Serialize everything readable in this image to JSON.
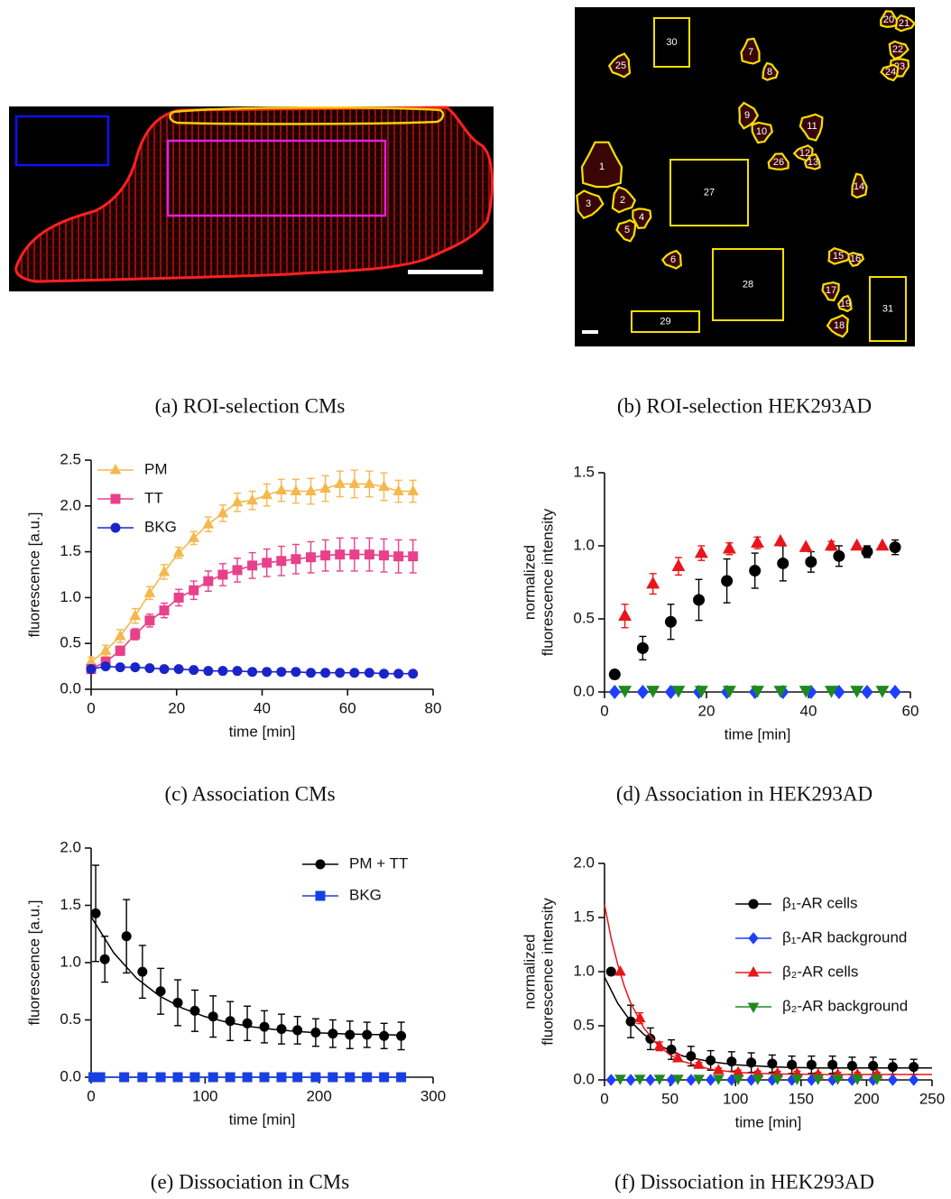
{
  "images": [
    {
      "caption": "(a) ROI-selection CMs"
    },
    {
      "caption": "(b) ROI-selection HEK293AD",
      "rois": [
        "1",
        "2",
        "3",
        "4",
        "5",
        "6",
        "7",
        "8",
        "9",
        "10",
        "11",
        "12",
        "13",
        "14",
        "15",
        "16",
        "17",
        "18",
        "19",
        "20",
        "21",
        "22",
        "23",
        "24",
        "25",
        "26",
        "27",
        "28",
        "29",
        "30",
        "31"
      ]
    }
  ],
  "chart_data": [
    {
      "type": "line",
      "caption": "(c) Association CMs",
      "xlabel": "time [min]",
      "ylabel": [
        "fluorescence [a.u.]"
      ],
      "xlim": [
        0,
        80
      ],
      "xticks": [
        0,
        20,
        40,
        60,
        80
      ],
      "ylim": [
        0,
        2.5
      ],
      "yticks": [
        {
          "value": 0,
          "label": "0.0"
        },
        0.5,
        {
          "value": 1,
          "label": "1.0"
        },
        1.5,
        {
          "value": 2,
          "label": "2.0"
        },
        2.5
      ],
      "legend": "top-left",
      "series": [
        {
          "name": "PM",
          "color": "#f5b84e",
          "marker": "triangle",
          "line": true,
          "x": [
            0,
            3.4,
            6.8,
            10.3,
            13.7,
            17.1,
            20.5,
            24.0,
            27.4,
            30.8,
            34.2,
            37.7,
            41.1,
            44.5,
            47.9,
            51.4,
            54.8,
            58.2,
            61.6,
            65.1,
            68.5,
            71.9,
            75.3
          ],
          "values": [
            0.3,
            0.42,
            0.58,
            0.8,
            1.05,
            1.28,
            1.49,
            1.65,
            1.8,
            1.92,
            2.04,
            2.06,
            2.12,
            2.17,
            2.16,
            2.16,
            2.19,
            2.24,
            2.24,
            2.24,
            2.21,
            2.16,
            2.16
          ],
          "errors": [
            0.05,
            0.06,
            0.07,
            0.08,
            0.07,
            0.08,
            0.06,
            0.07,
            0.08,
            0.09,
            0.1,
            0.1,
            0.12,
            0.12,
            0.13,
            0.14,
            0.14,
            0.14,
            0.15,
            0.14,
            0.15,
            0.12,
            0.12
          ]
        },
        {
          "name": "TT",
          "color": "#e8408a",
          "marker": "square",
          "line": true,
          "x": [
            0,
            3.4,
            6.8,
            10.3,
            13.7,
            17.1,
            20.5,
            24.0,
            27.4,
            30.8,
            34.2,
            37.7,
            41.1,
            44.5,
            47.9,
            51.4,
            54.8,
            58.2,
            61.6,
            65.1,
            68.5,
            71.9,
            75.3
          ],
          "values": [
            0.22,
            0.3,
            0.42,
            0.6,
            0.75,
            0.86,
            1.0,
            1.08,
            1.18,
            1.25,
            1.3,
            1.35,
            1.38,
            1.4,
            1.42,
            1.44,
            1.46,
            1.47,
            1.47,
            1.47,
            1.46,
            1.45,
            1.45
          ],
          "errors": [
            0.03,
            0.04,
            0.05,
            0.06,
            0.07,
            0.08,
            0.09,
            0.1,
            0.11,
            0.12,
            0.13,
            0.14,
            0.15,
            0.16,
            0.16,
            0.17,
            0.17,
            0.18,
            0.18,
            0.18,
            0.18,
            0.18,
            0.18
          ]
        },
        {
          "name": "BKG",
          "color": "#1a24c8",
          "marker": "circle",
          "line": true,
          "x": [
            0,
            3.4,
            6.8,
            10.3,
            13.7,
            17.1,
            20.5,
            24.0,
            27.4,
            30.8,
            34.2,
            37.7,
            41.1,
            44.5,
            47.9,
            51.4,
            54.8,
            58.2,
            61.6,
            65.1,
            68.5,
            71.9,
            75.3
          ],
          "values": [
            0.22,
            0.25,
            0.24,
            0.24,
            0.23,
            0.22,
            0.22,
            0.21,
            0.2,
            0.2,
            0.2,
            0.19,
            0.19,
            0.19,
            0.19,
            0.18,
            0.18,
            0.18,
            0.18,
            0.18,
            0.17,
            0.17,
            0.17
          ]
        }
      ]
    },
    {
      "type": "scatter",
      "caption": "(d) Association in HEK293AD",
      "xlabel": "time [min]",
      "ylabel": [
        "normalized",
        "fluorescence intensity"
      ],
      "xlim": [
        0,
        60
      ],
      "xticks": [
        0,
        20,
        40,
        60
      ],
      "ylim": [
        0,
        1.5
      ],
      "yticks": [
        {
          "value": 0,
          "label": "0.0"
        },
        0.5,
        {
          "value": 1,
          "label": "1.0"
        },
        1.5
      ],
      "series": [
        {
          "color": "#000000",
          "marker": "circle",
          "x": [
            2,
            7.5,
            13,
            18.5,
            24,
            29.5,
            35,
            40.5,
            46,
            51.5,
            57
          ],
          "values": [
            0.12,
            0.3,
            0.48,
            0.63,
            0.76,
            0.83,
            0.88,
            0.89,
            0.93,
            0.96,
            0.99
          ],
          "errors": [
            0.03,
            0.08,
            0.12,
            0.14,
            0.15,
            0.12,
            0.12,
            0.07,
            0.07,
            0.04,
            0.05
          ]
        },
        {
          "color": "#1f3fff",
          "marker": "diamond",
          "x": [
            2,
            7.5,
            13,
            18.5,
            24,
            29.5,
            35,
            40.5,
            46,
            51.5,
            57
          ],
          "values": [
            0,
            0,
            0,
            0,
            0,
            0,
            0,
            0,
            0,
            0,
            0
          ]
        },
        {
          "color": "#e8161b",
          "marker": "triangle",
          "x": [
            4,
            9.5,
            14.5,
            19,
            24.5,
            30,
            34.5,
            39.5,
            44.5,
            49.5,
            54.5
          ],
          "values": [
            0.52,
            0.74,
            0.86,
            0.95,
            0.98,
            1.02,
            1.03,
            0.99,
            1.0,
            1.0,
            1.0
          ],
          "errors": [
            0.08,
            0.07,
            0.06,
            0.05,
            0.04,
            0.04,
            0,
            0,
            0.03,
            0,
            0
          ]
        },
        {
          "color": "#1e8a1e",
          "marker": "triangle-down",
          "x": [
            4,
            9.5,
            14.5,
            19,
            24.5,
            30,
            34.5,
            39.5,
            44.5,
            49.5,
            54.5
          ],
          "values": [
            0.01,
            0.01,
            0.01,
            0.01,
            0.01,
            0.01,
            0.01,
            0.01,
            0.01,
            0.01,
            0.01
          ]
        }
      ]
    },
    {
      "type": "scatter",
      "caption": "(e) Dissociation in CMs",
      "xlabel": "time [min]",
      "ylabel": [
        "fluorescence [a.u.]"
      ],
      "xlim": [
        0,
        300
      ],
      "xticks": [
        0,
        100,
        200,
        300
      ],
      "ylim": [
        0,
        2
      ],
      "yticks": [
        {
          "value": 0,
          "label": "0.0"
        },
        0.5,
        {
          "value": 1,
          "label": "1.0"
        },
        1.5,
        {
          "value": 2,
          "label": "2.0"
        }
      ],
      "legend": "top-right",
      "series": [
        {
          "name": "PM + TT",
          "color": "#000000",
          "marker": "circle",
          "x": [
            4,
            12,
            31,
            45,
            61,
            76,
            91,
            107,
            122,
            137,
            152,
            167,
            181,
            197,
            212,
            227,
            242,
            257,
            272
          ],
          "values": [
            1.43,
            1.03,
            1.23,
            0.92,
            0.75,
            0.65,
            0.58,
            0.53,
            0.49,
            0.47,
            0.44,
            0.42,
            0.41,
            0.39,
            0.38,
            0.37,
            0.37,
            0.36,
            0.36
          ],
          "errors": [
            0.42,
            0.2,
            0.32,
            0.23,
            0.2,
            0.2,
            0.18,
            0.18,
            0.17,
            0.15,
            0.14,
            0.13,
            0.12,
            0.12,
            0.12,
            0.12,
            0.11,
            0.11,
            0.12
          ],
          "fit": {
            "x": [
              0,
              20,
              40,
              60,
              80,
              100,
              120,
              140,
              160,
              180,
              200,
              220,
              240,
              270
            ],
            "values": [
              1.4,
              1.083,
              0.862,
              0.709,
              0.603,
              0.528,
              0.478,
              0.441,
              0.417,
              0.4,
              0.387,
              0.379,
              0.374,
              0.368
            ]
          }
        },
        {
          "name": "BKG",
          "color": "#1a3fe0",
          "marker": "square",
          "line": true,
          "x": [
            2,
            8,
            29,
            45,
            61,
            76,
            91,
            107,
            122,
            137,
            152,
            167,
            181,
            197,
            212,
            227,
            242,
            257,
            272
          ],
          "values": [
            0,
            0,
            0,
            0,
            0,
            0,
            0,
            0,
            0,
            0,
            0,
            0,
            0,
            0,
            0,
            0,
            0,
            0,
            0
          ]
        }
      ]
    },
    {
      "type": "scatter",
      "caption": "(f) Dissociation in HEK293AD",
      "xlabel": "time [min]",
      "ylabel": [
        "normalized",
        "fluorescence intensity"
      ],
      "xlim": [
        0,
        250
      ],
      "xticks": [
        0,
        50,
        100,
        150,
        200,
        250
      ],
      "ylim": [
        0,
        2
      ],
      "yticks": [
        {
          "value": 0,
          "label": "0.0"
        },
        0.5,
        {
          "value": 1,
          "label": "1.0"
        },
        1.5,
        {
          "value": 2,
          "label": "2.0"
        }
      ],
      "legend": "top-right",
      "series": [
        {
          "name": "β₁-AR cells",
          "color": "#000000",
          "marker": "circle",
          "x": [
            5,
            20,
            35,
            51,
            66,
            81,
            97,
            112,
            128,
            143,
            158,
            174,
            189,
            205,
            220,
            236
          ],
          "values": [
            1.0,
            0.54,
            0.38,
            0.28,
            0.22,
            0.18,
            0.17,
            0.16,
            0.15,
            0.14,
            0.14,
            0.14,
            0.13,
            0.13,
            0.12,
            0.12
          ],
          "errors": [
            0,
            0.15,
            0.1,
            0.09,
            0.09,
            0.09,
            0.09,
            0.09,
            0.08,
            0.08,
            0.08,
            0.08,
            0.08,
            0.08,
            0.07,
            0.07
          ],
          "fit": {
            "x": [
              0,
              10,
              20,
              30,
              45,
              60,
              80,
              100,
              130,
              160,
              200,
              250
            ],
            "values": [
              0.95,
              0.71,
              0.54,
              0.42,
              0.3,
              0.22,
              0.17,
              0.14,
              0.12,
              0.11,
              0.11,
              0.11
            ]
          }
        },
        {
          "name": "β₁-AR background",
          "color": "#1f3fff",
          "marker": "diamond",
          "x": [
            5,
            20,
            35,
            51,
            66,
            81,
            97,
            112,
            128,
            143,
            158,
            174,
            189,
            205,
            220,
            236
          ],
          "values": [
            0,
            0,
            0,
            0,
            0,
            0,
            0,
            0,
            0,
            0,
            0,
            0,
            0,
            0,
            0,
            0
          ]
        },
        {
          "name": "β₂-AR cells",
          "color": "#e8161b",
          "marker": "triangle",
          "x": [
            12,
            27,
            42,
            56,
            72,
            87,
            102,
            117,
            132,
            147,
            163,
            178,
            193,
            208
          ],
          "values": [
            1.0,
            0.57,
            0.31,
            0.2,
            0.14,
            0.09,
            0.07,
            0.06,
            0.06,
            0.06,
            0.05,
            0.05,
            0.05,
            0.05
          ],
          "errors": [
            0,
            0.05,
            0.04,
            0.03,
            0.02,
            0.02,
            0.02,
            0.02,
            0.02,
            0.02,
            0.02,
            0.02,
            0.02,
            0.02
          ],
          "fit": {
            "x": [
              0,
              5,
              10,
              15,
              20,
              30,
              40,
              50,
              60,
              80,
              100,
              130,
              170,
              210,
              250
            ],
            "values": [
              1.62,
              1.31,
              1.07,
              0.87,
              0.71,
              0.48,
              0.33,
              0.23,
              0.17,
              0.1,
              0.07,
              0.055,
              0.05,
              0.05,
              0.05
            ]
          }
        },
        {
          "name": "β₂-AR background",
          "color": "#1e8a1e",
          "marker": "triangle-down",
          "x": [
            12,
            27,
            42,
            56,
            72,
            87,
            102,
            117,
            132,
            147,
            163,
            178,
            193,
            208
          ],
          "values": [
            0.01,
            0.01,
            0.01,
            0.01,
            0.01,
            0.01,
            0.01,
            0.01,
            0.01,
            0.01,
            0.01,
            0.01,
            0.01,
            0.01
          ]
        }
      ]
    }
  ]
}
